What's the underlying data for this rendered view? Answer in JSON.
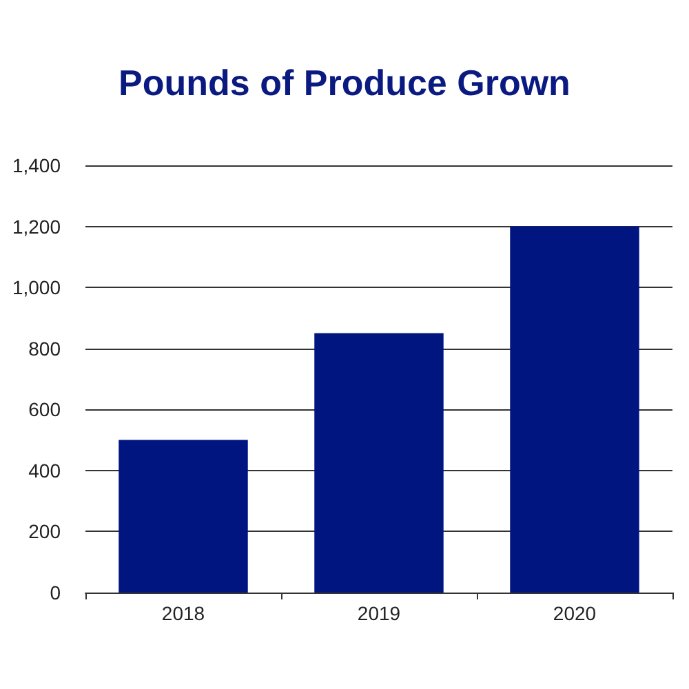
{
  "chart_data": {
    "type": "bar",
    "title": "Pounds of Produce Grown",
    "categories": [
      "2018",
      "2019",
      "2020"
    ],
    "values": [
      500,
      850,
      1200
    ],
    "color": "#001580",
    "ylim": [
      0,
      1400
    ],
    "yticks": [
      0,
      {
        "value": 200,
        "label": "200"
      },
      {
        "value": 400,
        "label": "400"
      },
      {
        "value": 600,
        "label": "600"
      },
      {
        "value": 800,
        "label": "800"
      },
      {
        "value": 1000,
        "label": "1,000"
      },
      {
        "value": 1200,
        "label": "1,200"
      },
      {
        "value": 1400,
        "label": "1,400"
      }
    ],
    "grid": "y"
  }
}
